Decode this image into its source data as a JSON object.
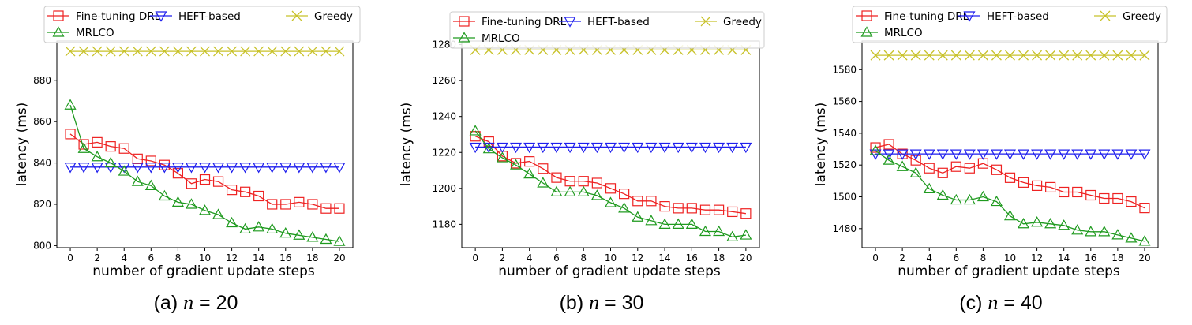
{
  "legend_entries": [
    "Fine-tuning DRL",
    "HEFT-based",
    "Greedy",
    "MRLCO"
  ],
  "series_colors": {
    "Fine-tuning DRL": "#ee2222",
    "HEFT-based": "#1f1fee",
    "Greedy": "#c8c22a",
    "MRLCO": "#1f9a1f"
  },
  "series_markers": {
    "Fine-tuning DRL": "square",
    "HEFT-based": "triangle-down",
    "Greedy": "x",
    "MRLCO": "triangle-up"
  },
  "chart_data": [
    {
      "type": "line",
      "caption_prefix": "(a)",
      "caption_var": "n",
      "caption_rest": " = 20",
      "xlabel": "number of gradient update steps",
      "ylabel": "latency (ms)",
      "xlim": [
        -1,
        21
      ],
      "ylim": [
        799,
        899
      ],
      "xticks": [
        0,
        2,
        4,
        6,
        8,
        10,
        12,
        14,
        16,
        18,
        20
      ],
      "yticks": [
        800,
        820,
        840,
        860,
        880
      ],
      "legend": "top, three columns",
      "grid": false,
      "x": [
        0,
        1,
        2,
        3,
        4,
        5,
        6,
        7,
        8,
        9,
        10,
        11,
        12,
        13,
        14,
        15,
        16,
        17,
        18,
        19,
        20
      ],
      "series": [
        {
          "name": "Fine-tuning DRL",
          "values": [
            854,
            849,
            850,
            848,
            847,
            842,
            841,
            839,
            835,
            830,
            832,
            831,
            827,
            826,
            824,
            820,
            820,
            821,
            820,
            818,
            818
          ]
        },
        {
          "name": "HEFT-based",
          "values": [
            838,
            838,
            838,
            838,
            838,
            838,
            838,
            838,
            838,
            838,
            838,
            838,
            838,
            838,
            838,
            838,
            838,
            838,
            838,
            838,
            838
          ]
        },
        {
          "name": "Greedy",
          "values": [
            894,
            894,
            894,
            894,
            894,
            894,
            894,
            894,
            894,
            894,
            894,
            894,
            894,
            894,
            894,
            894,
            894,
            894,
            894,
            894,
            894
          ]
        },
        {
          "name": "MRLCO",
          "values": [
            868,
            847,
            843,
            840,
            836,
            831,
            829,
            824,
            821,
            820,
            817,
            815,
            811,
            808,
            809,
            808,
            806,
            805,
            804,
            803,
            802
          ]
        }
      ]
    },
    {
      "type": "line",
      "caption_prefix": "(b)",
      "caption_var": "n",
      "caption_rest": " = 30",
      "xlabel": "number of gradient update steps",
      "ylabel": "latency (ms)",
      "xlim": [
        -1,
        21
      ],
      "ylim": [
        1167,
        1282
      ],
      "xticks": [
        0,
        2,
        4,
        6,
        8,
        10,
        12,
        14,
        16,
        18,
        20
      ],
      "yticks": [
        1180,
        1200,
        1220,
        1240,
        1260,
        1280
      ],
      "legend": "top, three columns",
      "grid": false,
      "x": [
        0,
        1,
        2,
        3,
        4,
        5,
        6,
        7,
        8,
        9,
        10,
        11,
        12,
        13,
        14,
        15,
        16,
        17,
        18,
        19,
        20
      ],
      "series": [
        {
          "name": "Fine-tuning DRL",
          "values": [
            1229,
            1226,
            1218,
            1214,
            1215,
            1211,
            1206,
            1204,
            1204,
            1203,
            1200,
            1197,
            1193,
            1193,
            1190,
            1189,
            1189,
            1188,
            1188,
            1187,
            1186
          ]
        },
        {
          "name": "HEFT-based",
          "values": [
            1223,
            1223,
            1223,
            1223,
            1223,
            1223,
            1223,
            1223,
            1223,
            1223,
            1223,
            1223,
            1223,
            1223,
            1223,
            1223,
            1223,
            1223,
            1223,
            1223,
            1223
          ]
        },
        {
          "name": "Greedy",
          "values": [
            1277,
            1277,
            1277,
            1277,
            1277,
            1277,
            1277,
            1277,
            1277,
            1277,
            1277,
            1277,
            1277,
            1277,
            1277,
            1277,
            1277,
            1277,
            1277,
            1277,
            1277
          ]
        },
        {
          "name": "MRLCO",
          "values": [
            1232,
            1222,
            1217,
            1213,
            1208,
            1203,
            1198,
            1198,
            1198,
            1196,
            1192,
            1189,
            1184,
            1182,
            1180,
            1180,
            1180,
            1176,
            1176,
            1173,
            1174
          ]
        }
      ]
    },
    {
      "type": "line",
      "caption_prefix": "(c)",
      "caption_var": "n",
      "caption_rest": " = 40",
      "xlabel": "number of gradient update steps",
      "ylabel": "latency (ms)",
      "xlim": [
        -1,
        21
      ],
      "ylim": [
        1468,
        1598
      ],
      "xticks": [
        0,
        2,
        4,
        6,
        8,
        10,
        12,
        14,
        16,
        18,
        20
      ],
      "yticks": [
        1480,
        1500,
        1520,
        1540,
        1560,
        1580
      ],
      "legend": "top, three columns",
      "grid": false,
      "x": [
        0,
        1,
        2,
        3,
        4,
        5,
        6,
        7,
        8,
        9,
        10,
        11,
        12,
        13,
        14,
        15,
        16,
        17,
        18,
        19,
        20
      ],
      "series": [
        {
          "name": "Fine-tuning DRL",
          "values": [
            1531,
            1533,
            1527,
            1523,
            1518,
            1515,
            1519,
            1518,
            1521,
            1517,
            1512,
            1509,
            1507,
            1506,
            1503,
            1503,
            1501,
            1499,
            1499,
            1497,
            1493
          ]
        },
        {
          "name": "HEFT-based",
          "values": [
            1527,
            1527,
            1527,
            1527,
            1527,
            1527,
            1527,
            1527,
            1527,
            1527,
            1527,
            1527,
            1527,
            1527,
            1527,
            1527,
            1527,
            1527,
            1527,
            1527,
            1527
          ]
        },
        {
          "name": "Greedy",
          "values": [
            1589,
            1589,
            1589,
            1589,
            1589,
            1589,
            1589,
            1589,
            1589,
            1589,
            1589,
            1589,
            1589,
            1589,
            1589,
            1589,
            1589,
            1589,
            1589,
            1589,
            1589
          ]
        },
        {
          "name": "MRLCO",
          "values": [
            1529,
            1523,
            1519,
            1515,
            1505,
            1501,
            1498,
            1498,
            1500,
            1497,
            1488,
            1483,
            1484,
            1483,
            1482,
            1479,
            1478,
            1478,
            1476,
            1474,
            1472
          ]
        }
      ]
    }
  ]
}
